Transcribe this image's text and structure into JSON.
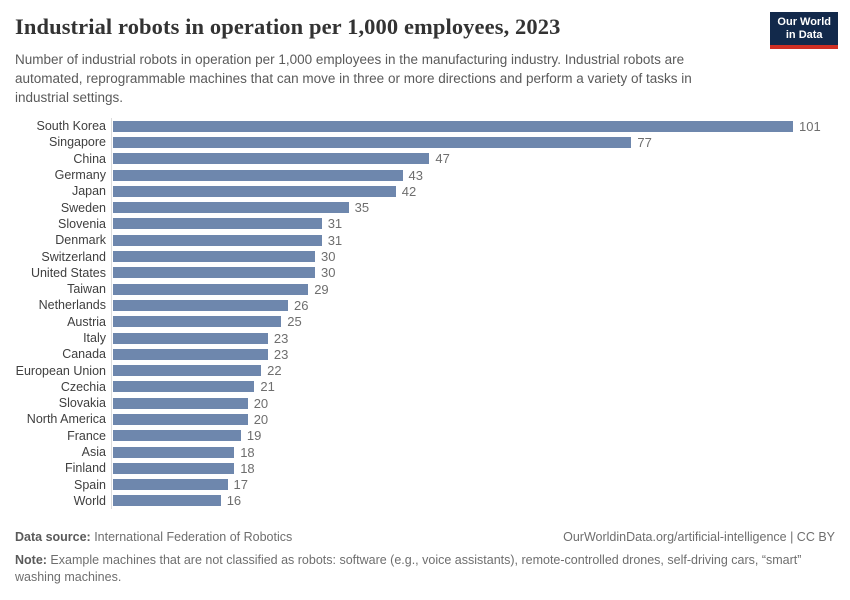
{
  "header": {
    "title": "Industrial robots in operation per 1,000 employees, 2023",
    "subtitle": "Number of industrial robots in operation per 1,000 employees in the manufacturing industry. Industrial robots are automated, reprogrammable machines that can move in three or more directions and perform a variety of tasks in industrial settings.",
    "logo": {
      "line1": "Our World",
      "line2": "in Data"
    }
  },
  "chart_data": {
    "type": "bar",
    "orientation": "horizontal",
    "title": "Industrial robots in operation per 1,000 employees, 2023",
    "categories": [
      "South Korea",
      "Singapore",
      "China",
      "Germany",
      "Japan",
      "Sweden",
      "Slovenia",
      "Denmark",
      "Switzerland",
      "United States",
      "Taiwan",
      "Netherlands",
      "Austria",
      "Italy",
      "Canada",
      "European Union",
      "Czechia",
      "Slovakia",
      "North America",
      "France",
      "Asia",
      "Finland",
      "Spain",
      "World"
    ],
    "values": [
      101,
      77,
      47,
      43,
      42,
      35,
      31,
      31,
      30,
      30,
      29,
      26,
      25,
      23,
      23,
      22,
      21,
      20,
      20,
      19,
      18,
      18,
      17,
      16
    ],
    "xlim": [
      0,
      101
    ],
    "grid": false,
    "legend": false,
    "value_labels": true
  },
  "colors": {
    "bar": "#6e87ad",
    "value_label": "#6e6e6e",
    "category_label": "#3f3f3f",
    "axis_line": "#dcdcdc",
    "logo_background": "#12294b",
    "logo_accent": "#cf2f24"
  },
  "footer": {
    "datasource_label": "Data source:",
    "datasource_value": " International Federation of Robotics",
    "attribution": "OurWorldinData.org/artificial-intelligence | CC BY",
    "note_label": "Note:",
    "note_text": " Example machines that are not classified as robots: software (e.g., voice assistants), remote-controlled drones, self-driving cars, “smart” washing machines."
  }
}
